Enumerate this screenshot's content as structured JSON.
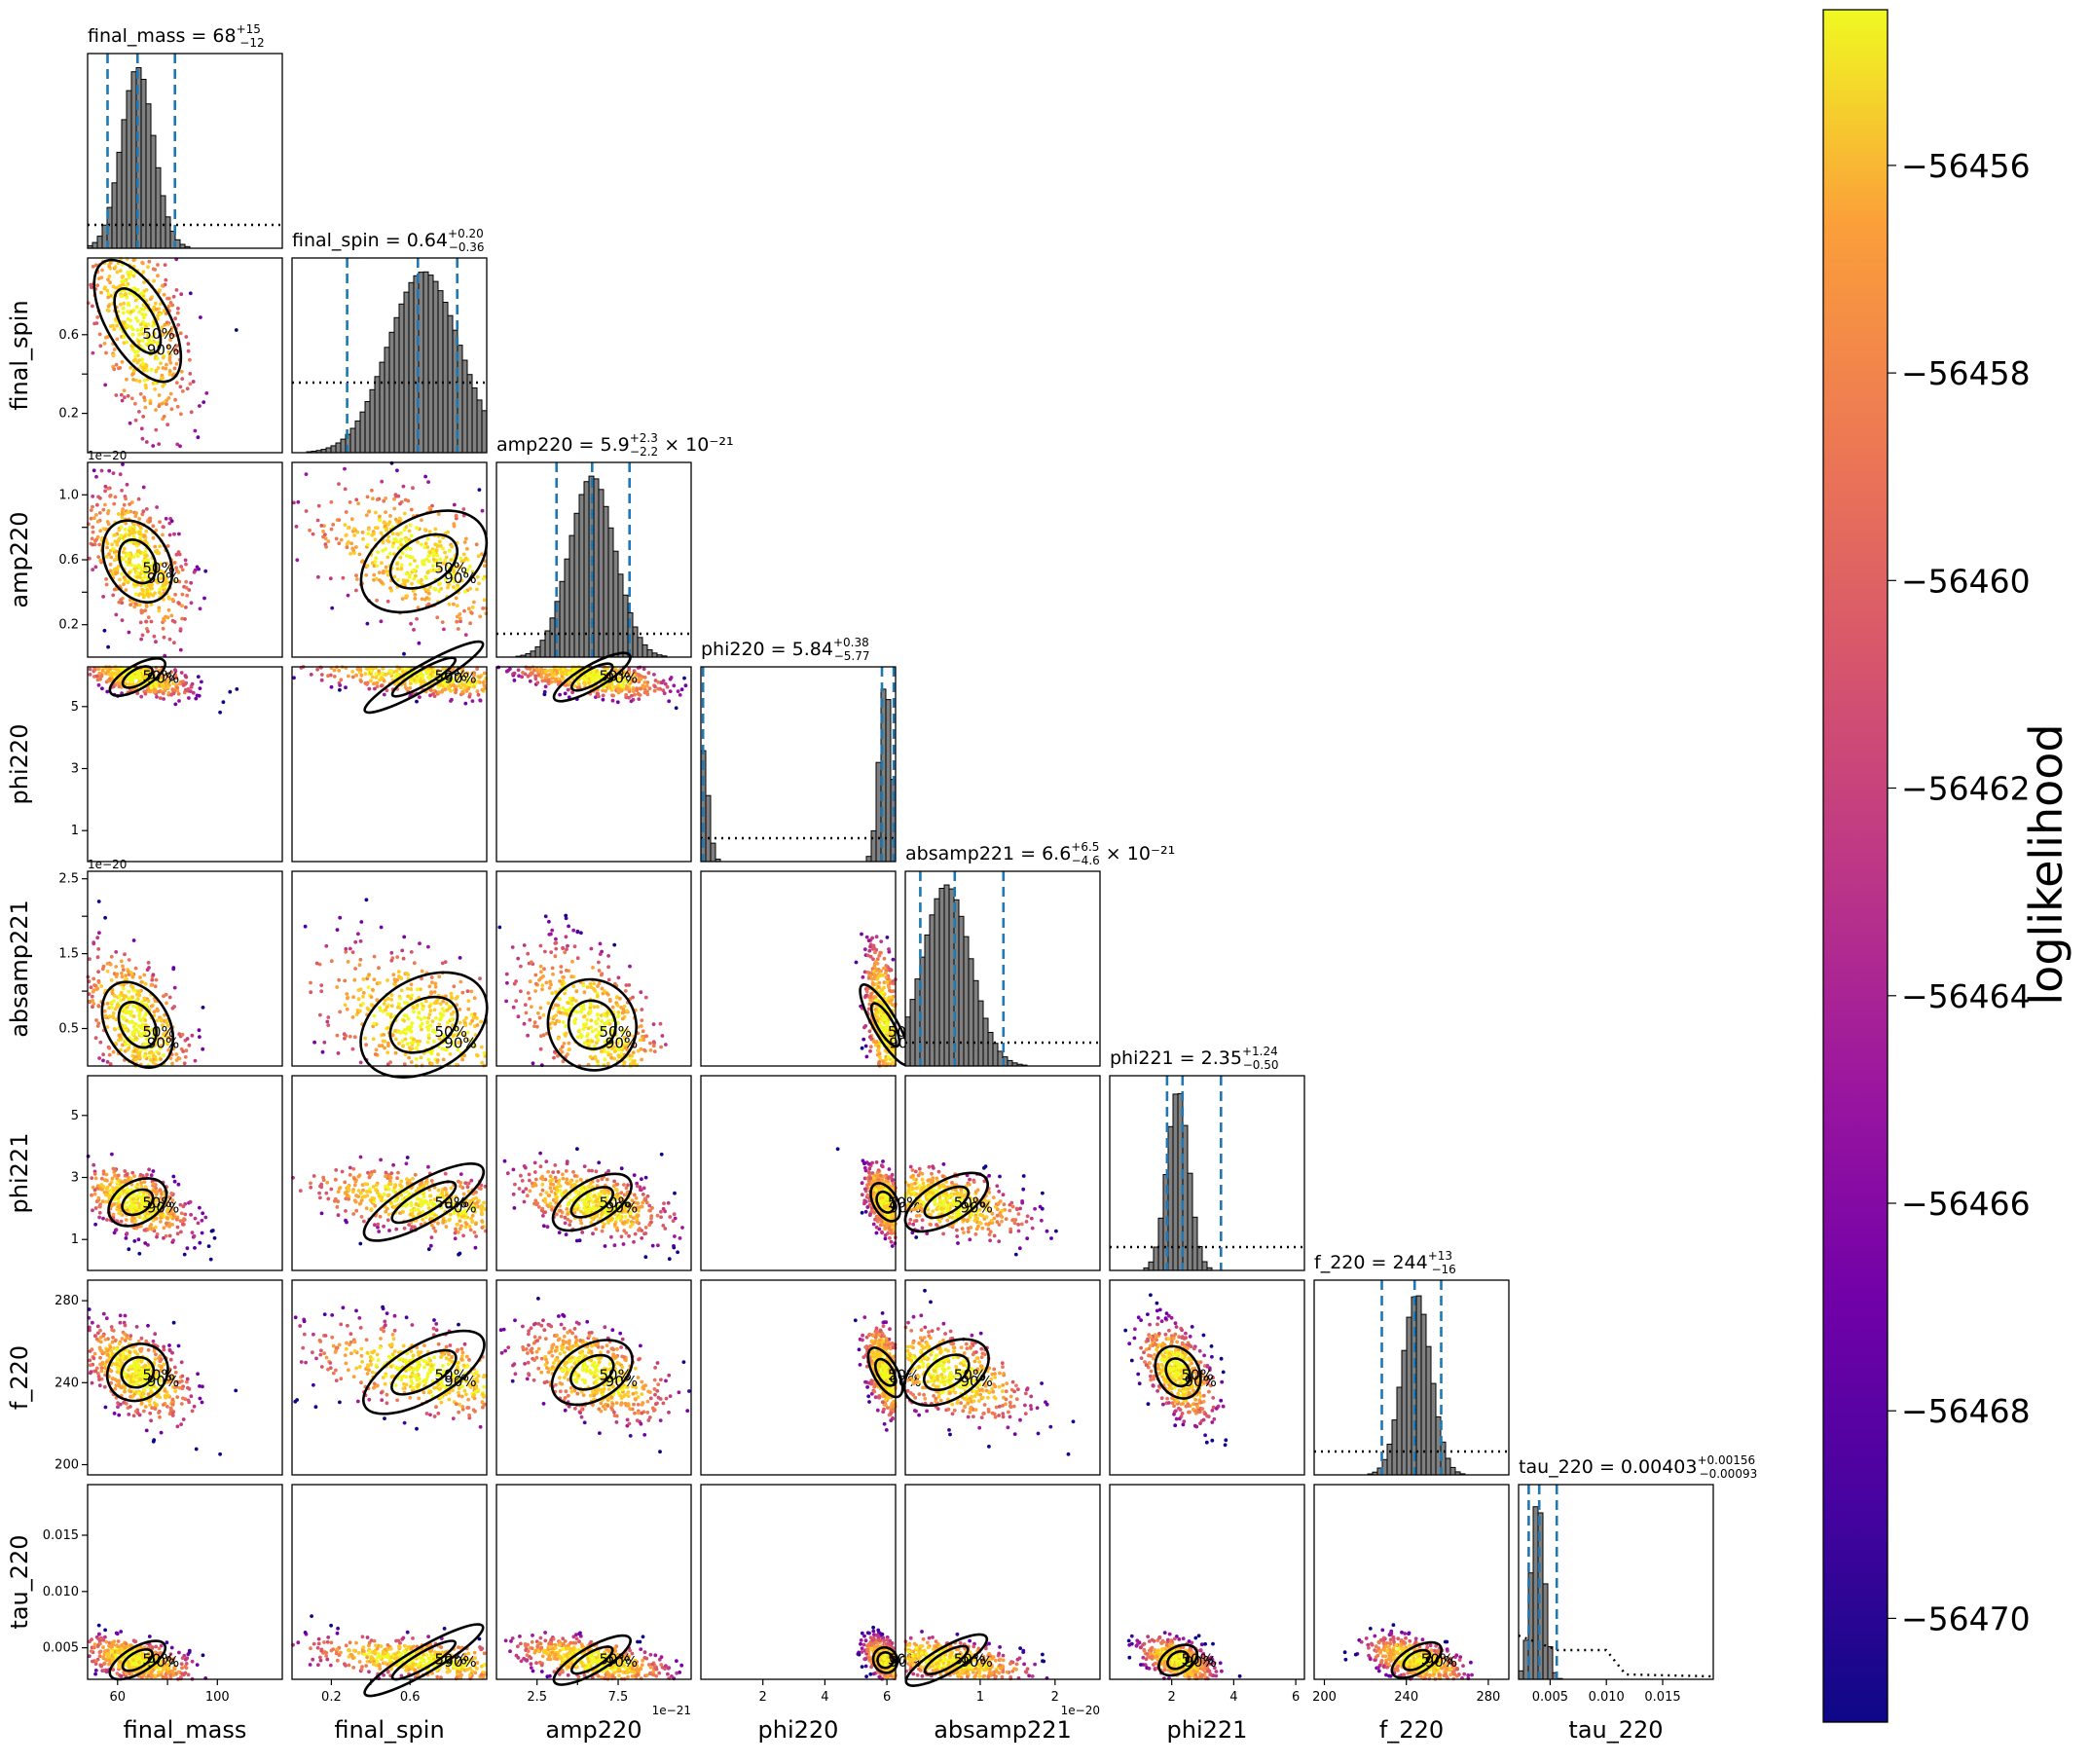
{
  "chart_data": {
    "type": "scatter",
    "kind": "corner plot (posterior samples colored by loglikelihood)",
    "parameters": [
      {
        "name": "final_mass",
        "title": "final_mass = 68",
        "sup": "+15",
        "sub": "−12",
        "suffix": "",
        "median": 68,
        "lower": 56,
        "upper": 83,
        "range": [
          48,
          126
        ],
        "ticks": [
          60,
          80,
          100
        ],
        "tick_labels": [
          "60",
          "",
          "100"
        ],
        "hist_peak": 68,
        "hist_width": 6.5
      },
      {
        "name": "final_spin",
        "title": "final_spin = 0.64",
        "sup": "+0.20",
        "sub": "−0.36",
        "suffix": "",
        "median": 0.64,
        "lower": 0.28,
        "upper": 0.84,
        "range": [
          0.0,
          0.99
        ],
        "ticks": [
          0.2,
          0.4,
          0.6
        ],
        "tick_labels": [
          "0.2",
          "",
          "0.6"
        ],
        "hist_peak": 0.67,
        "hist_width": 0.18
      },
      {
        "name": "amp220",
        "title": "amp220 = 5.9",
        "sup": "+2.3",
        "sub": "−2.2",
        "suffix": " × 10⁻²¹",
        "median": 5.9,
        "lower": 3.7,
        "upper": 8.2,
        "range": [
          0.0,
          12.0
        ],
        "ticks": [
          2.5,
          5.0,
          7.5
        ],
        "tick_labels": [
          "2.5",
          "",
          "7.5"
        ],
        "hist_peak": 5.9,
        "hist_width": 1.4,
        "offset_label": "1e−21"
      },
      {
        "name": "phi220",
        "title": "phi220 = 5.84",
        "sup": "+0.38",
        "sub": "−5.77",
        "suffix": "",
        "median": 5.84,
        "lower": 0.07,
        "upper": 6.22,
        "range": [
          0.0,
          6.28
        ],
        "ticks": [
          2,
          4,
          6
        ],
        "tick_labels": [
          "2",
          "4",
          "6"
        ],
        "hist_peak": 5.95,
        "hist_width": 0.2
      },
      {
        "name": "absamp221",
        "title": "absamp221 = 6.6",
        "sup": "+6.5",
        "sub": "−4.6",
        "suffix": " × 10⁻²¹",
        "median": 6.6,
        "lower": 2.0,
        "upper": 13.1,
        "range": [
          0.0,
          26.0
        ],
        "ticks": [
          10,
          20
        ],
        "tick_labels": [
          "1",
          "2"
        ],
        "hist_peak": 5.5,
        "hist_width": 3.2,
        "offset_label": "1e−20"
      },
      {
        "name": "phi221",
        "title": "phi221 = 2.35",
        "sup": "+1.24",
        "sub": "−0.50",
        "suffix": "",
        "median": 2.35,
        "lower": 1.85,
        "upper": 3.59,
        "range": [
          0.0,
          6.28
        ],
        "ticks": [
          2,
          4,
          6
        ],
        "tick_labels": [
          "2",
          "4",
          "6"
        ],
        "hist_peak": 2.2,
        "hist_width": 0.35
      },
      {
        "name": "f_220",
        "title": "f_220 = 244",
        "sup": "+13",
        "sub": "−16",
        "suffix": "",
        "median": 244,
        "lower": 228,
        "upper": 257,
        "range": [
          195,
          290
        ],
        "ticks": [
          200,
          240,
          280
        ],
        "tick_labels": [
          "200",
          "240",
          "280"
        ],
        "hist_peak": 245,
        "hist_width": 7
      },
      {
        "name": "tau_220",
        "title": "tau_220 = 0.00403",
        "sup": "+0.00156",
        "sub": "−0.00093",
        "suffix": "",
        "median": 0.00403,
        "lower": 0.0031,
        "upper": 0.00559,
        "range": [
          0.0022,
          0.0195
        ],
        "ticks": [
          0.005,
          0.01,
          0.015
        ],
        "tick_labels": [
          "0.005",
          "0.010",
          "0.015"
        ],
        "hist_peak": 0.0039,
        "hist_width": 0.0006
      }
    ],
    "row_axis_ticks": {
      "final_spin": {
        "ticks": [
          0.2,
          0.4,
          0.6
        ],
        "labels": [
          "0.2",
          "",
          "0.6"
        ]
      },
      "amp220": {
        "ticks": [
          2,
          4,
          6,
          8,
          10
        ],
        "labels": [
          "0.2",
          "",
          "0.6",
          "",
          "1.0"
        ],
        "offset_label": "1e−20"
      },
      "phi220": {
        "ticks": [
          1,
          3,
          5
        ],
        "labels": [
          "1",
          "3",
          "5"
        ]
      },
      "absamp221": {
        "ticks": [
          5,
          10,
          15,
          20,
          25
        ],
        "labels": [
          "0.5",
          "",
          "1.5",
          "",
          "2.5"
        ],
        "offset_label": "1e−20"
      },
      "phi221": {
        "ticks": [
          1,
          3,
          5
        ],
        "labels": [
          "1",
          "3",
          "5"
        ]
      },
      "f_220": {
        "ticks": [
          200,
          240,
          280
        ],
        "labels": [
          "200",
          "240",
          "280"
        ]
      },
      "tau_220": {
        "ticks": [
          0.005,
          0.01,
          0.015
        ],
        "labels": [
          "0.005",
          "0.010",
          "0.015"
        ]
      }
    },
    "contour_labels": [
      "50%",
      "90%"
    ],
    "colorbar": {
      "label": "loglikelihood",
      "range": [
        -56471,
        -56454.5
      ],
      "ticks": [
        -56456,
        -56458,
        -56460,
        -56462,
        -56464,
        -56466,
        -56468,
        -56470
      ],
      "tick_labels": [
        "−56456",
        "−56458",
        "−56460",
        "−56462",
        "−56464",
        "−56466",
        "−56468",
        "−56470"
      ],
      "colormap": "plasma"
    },
    "colors": {
      "credible_interval_lines": "#1f77b4",
      "histogram_fill": "#808080",
      "contours": "#000000"
    },
    "legend": "none",
    "grid": false
  }
}
